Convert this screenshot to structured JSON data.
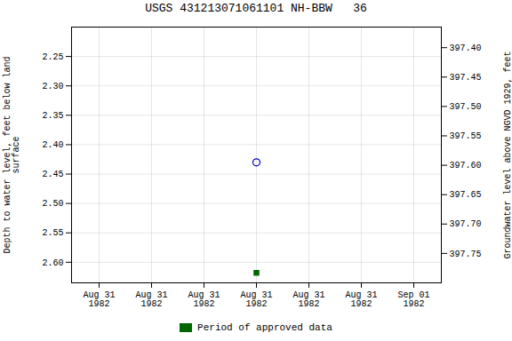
{
  "chart_data": {
    "type": "scatter",
    "title": "USGS 431213071061101 NH-BBW   36",
    "ylabel": "Depth to water level, feet below land\nsurface",
    "y2label": "Groundwater level above NGVD 1929, feet",
    "categories": [
      "Aug 31\n1982",
      "Aug 31\n1982",
      "Aug 31\n1982",
      "Aug 31\n1982",
      "Aug 31\n1982",
      "Aug 31\n1982",
      "Sep 01\n1982"
    ],
    "series": [
      {
        "color": "#0000bb",
        "marker": "circle",
        "values": [
          null,
          null,
          null,
          2.43,
          null,
          null,
          null
        ]
      },
      {
        "name": "Period of approved data",
        "color": "#006600",
        "marker": "square",
        "values": [
          null,
          null,
          null,
          2.618,
          null,
          null,
          null
        ]
      }
    ],
    "ylim": [
      2.635,
      2.2
    ],
    "yticks": [
      2.25,
      {
        "value": 2.3,
        "label": "2.30"
      },
      2.35,
      {
        "value": 2.4,
        "label": "2.40"
      },
      2.45,
      {
        "value": 2.5,
        "label": "2.50"
      },
      2.55,
      {
        "value": 2.6,
        "label": "2.60"
      }
    ],
    "y2lim": [
      397.8,
      397.365
    ],
    "y2ticks": [
      397.75,
      {
        "value": 397.7,
        "label": "397.70"
      },
      397.65,
      {
        "value": 397.6,
        "label": "397.60"
      },
      397.55,
      {
        "value": 397.5,
        "label": "397.50"
      },
      397.45,
      {
        "value": 397.4,
        "label": "397.40"
      }
    ],
    "grid": true,
    "legend": "bottom"
  }
}
